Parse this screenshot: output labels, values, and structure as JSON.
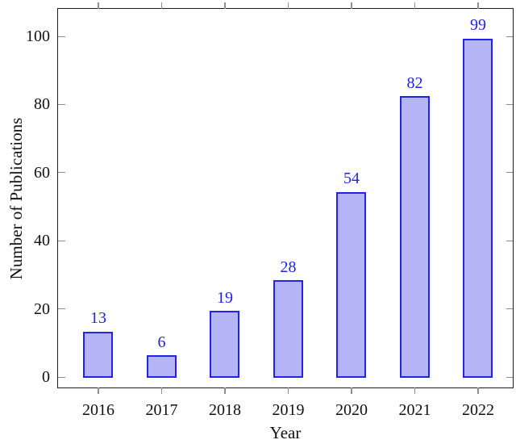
{
  "chart_data": {
    "type": "bar",
    "title": "",
    "categories": [
      "2016",
      "2017",
      "2018",
      "2019",
      "2020",
      "2021",
      "2022"
    ],
    "values": [
      13,
      6,
      19,
      28,
      54,
      82,
      99
    ],
    "xlabel": "Year",
    "ylabel": "Number of Publications",
    "yticks": [
      0,
      20,
      40,
      60,
      80,
      100
    ],
    "ylim": [
      -3,
      108
    ],
    "grid": false,
    "legend": null,
    "value_labels_shown": true,
    "colors": {
      "bar_fill": "#b4b4f6",
      "bar_border": "#2222e8",
      "value_label": "#2323dd",
      "axis_frame": "#1c1c1c",
      "tick_mark": "#8f8f8f",
      "tick_text": "#111111"
    }
  }
}
